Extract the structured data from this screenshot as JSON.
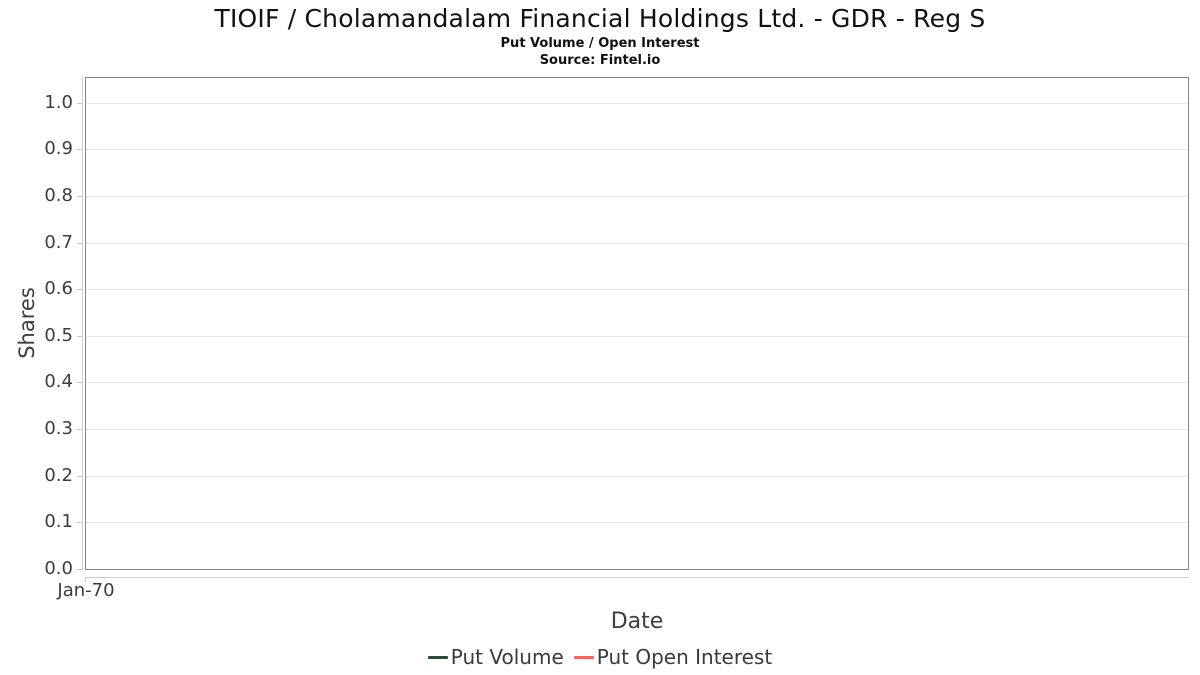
{
  "chart_data": {
    "type": "line",
    "title": "TIOIF / Cholamandalam Financial Holdings Ltd. - GDR - Reg S",
    "subtitle": "Put Volume / Open Interest",
    "source": "Source: Fintel.io",
    "xlabel": "Date",
    "ylabel": "Shares",
    "x_tick_labels": [
      "Jan-70"
    ],
    "y_ticks": [
      0.0,
      0.1,
      0.2,
      0.3,
      0.4,
      0.5,
      0.6,
      0.7,
      0.8,
      0.9,
      1.0
    ],
    "ylim": [
      0,
      1.053
    ],
    "grid": "horizontal",
    "legend_position": "bottom-center",
    "plot_border_color": "#848484",
    "gridline_color": "#e6e6e6",
    "axis_line_color": "#cccccc",
    "series": [
      {
        "name": "Put Volume",
        "color": "#2B4D36",
        "x": [],
        "values": []
      },
      {
        "name": "Put Open Interest",
        "color": "#F4655F",
        "x": [],
        "values": []
      }
    ]
  }
}
